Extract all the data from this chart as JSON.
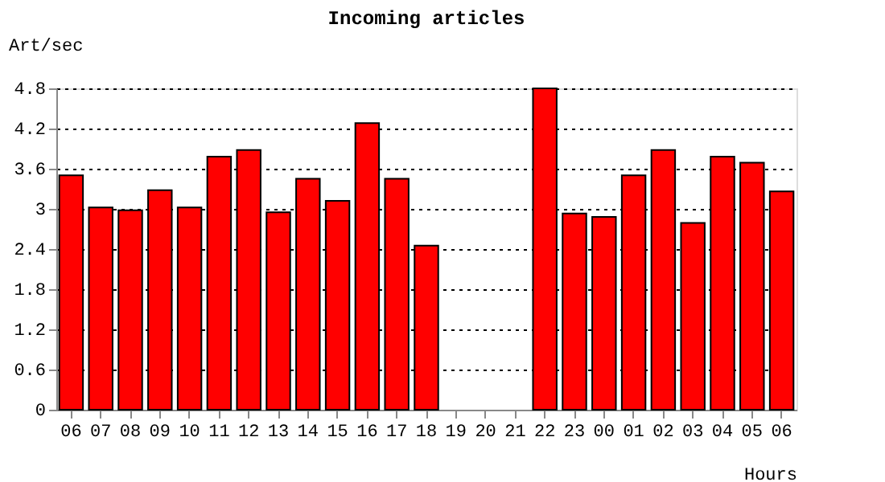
{
  "chart_data": {
    "type": "bar",
    "title": "Incoming articles",
    "xlabel": "Hours",
    "ylabel": "Art/sec",
    "categories": [
      "06",
      "07",
      "08",
      "09",
      "10",
      "11",
      "12",
      "13",
      "14",
      "15",
      "16",
      "17",
      "18",
      "19",
      "20",
      "21",
      "22",
      "23",
      "00",
      "01",
      "02",
      "03",
      "04",
      "05",
      "06"
    ],
    "values": [
      3.5,
      3.02,
      2.98,
      3.28,
      3.02,
      3.78,
      3.88,
      2.95,
      3.45,
      3.12,
      4.28,
      3.45,
      2.45,
      0,
      0,
      0,
      4.8,
      2.93,
      2.88,
      3.5,
      3.88,
      2.79,
      3.78,
      3.69,
      3.26
    ],
    "color": "#ff0000",
    "ylim": [
      0,
      4.8
    ],
    "yticks": [
      0,
      0.6,
      1.2,
      1.8,
      2.4,
      3,
      3.6,
      4.2,
      4.8
    ],
    "grid": "y",
    "line_style": "dotted"
  }
}
